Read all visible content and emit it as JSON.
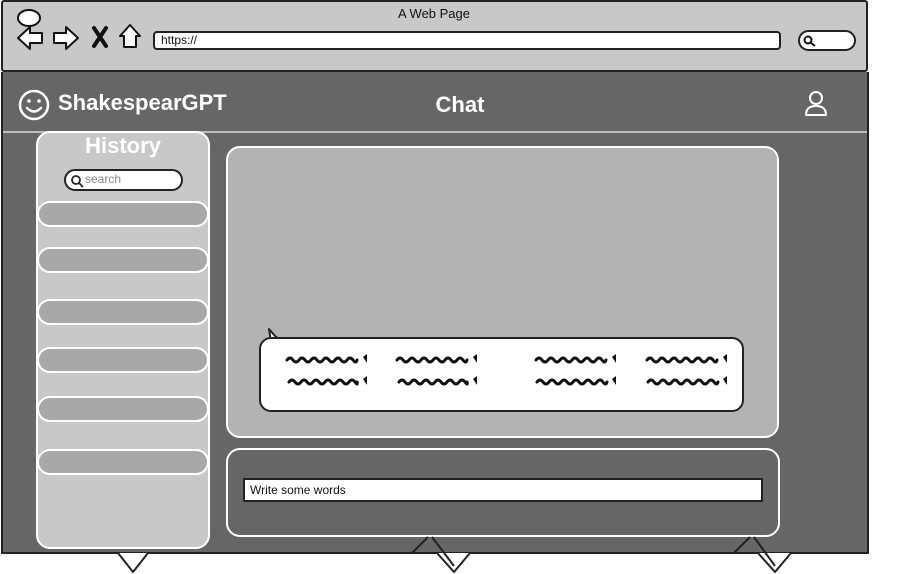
{
  "window": {
    "title": "A Web Page"
  },
  "browser": {
    "url": "https://"
  },
  "app": {
    "title": "ShakespearGPT",
    "page_heading": "Chat"
  },
  "history": {
    "heading": "History",
    "search_placeholder": "search",
    "item_count": 6
  },
  "chat": {
    "input_value": "Write some words"
  },
  "icons": {
    "nav": [
      "back-arrow-icon",
      "forward-arrow-icon",
      "close-x-icon",
      "home-icon"
    ],
    "logo": "smiley-face-icon",
    "user": "user-icon",
    "search": "magnifier-icon"
  },
  "colors": {
    "browser_chrome": "#c8c8c8",
    "app_background": "#666666",
    "panel_light": "#c8c8c8",
    "chat_area": "#b3b3b3",
    "history_item": "#a8a8a8",
    "text_light": "#ffffff"
  }
}
